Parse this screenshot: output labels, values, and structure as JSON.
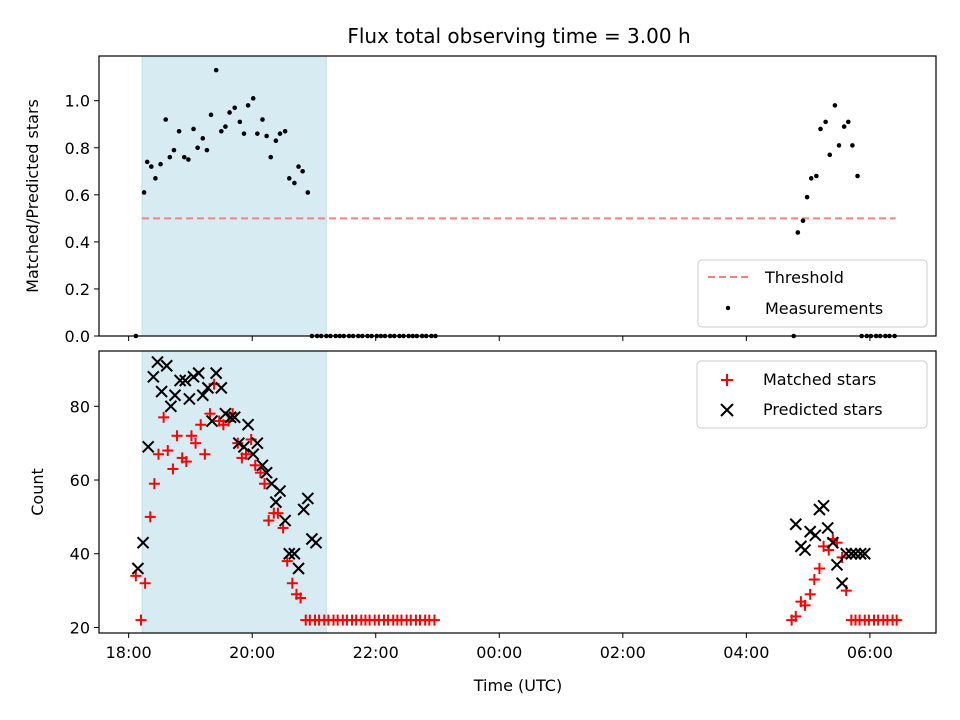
{
  "chart_data": {
    "type": "scatter",
    "title": "Flux total observing time = 3.00 h",
    "xlabel": "Time (UTC)",
    "x_ticks": [
      "18:00",
      "20:00",
      "22:00",
      "00:00",
      "02:00",
      "04:00",
      "06:00"
    ],
    "x_range_hours_from_1800": [
      -0.48,
      13.07
    ],
    "shaded_interval": [
      "18:13",
      "21:12"
    ],
    "panels": [
      {
        "ylabel": "Matched/Predicted stars",
        "ylim": [
          0,
          1.19
        ],
        "yticks": [
          "0.0",
          "0.2",
          "0.4",
          "0.6",
          "0.8",
          "1.0"
        ],
        "legend_position": "lower-right",
        "series": [
          {
            "name": "Threshold",
            "kind": "dashed-line",
            "color": "#ff7f7f",
            "x": [
              "18:13",
              "06:25"
            ],
            "y": [
              0.5,
              0.5
            ]
          },
          {
            "name": "Measurements",
            "kind": "dot",
            "color": "#000000",
            "x": [
              "18:07",
              "18:15",
              "18:18",
              "18:22",
              "18:26",
              "18:31",
              "18:36",
              "18:40",
              "18:44",
              "18:49",
              "18:54",
              "18:58",
              "19:03",
              "19:07",
              "19:12",
              "19:16",
              "19:20",
              "19:25",
              "19:30",
              "19:34",
              "19:38",
              "19:43",
              "19:48",
              "19:52",
              "19:56",
              "20:01",
              "20:05",
              "20:10",
              "20:14",
              "20:18",
              "20:23",
              "20:27",
              "20:32",
              "20:36",
              "20:41",
              "20:45",
              "20:49",
              "20:54",
              "20:58",
              "21:03",
              "21:07",
              "21:12",
              "21:16",
              "21:21",
              "21:25",
              "21:29",
              "21:34",
              "21:38",
              "21:43",
              "21:47",
              "21:52",
              "21:56",
              "22:01",
              "22:05",
              "22:09",
              "22:14",
              "22:18",
              "22:23",
              "22:27",
              "22:32",
              "22:36",
              "22:40",
              "22:45",
              "22:49",
              "22:54",
              "22:58",
              "04:46",
              "04:50",
              "04:55",
              "04:59",
              "05:03",
              "05:08",
              "05:12",
              "05:17",
              "05:21",
              "05:26",
              "05:30",
              "05:35",
              "05:39",
              "05:43",
              "05:48",
              "05:52",
              "05:57",
              "06:01",
              "06:06",
              "06:10",
              "06:15",
              "06:19",
              "06:24"
            ],
            "y": [
              0,
              0.61,
              0.74,
              0.72,
              0.67,
              0.73,
              0.92,
              0.76,
              0.79,
              0.87,
              0.76,
              0.75,
              0.88,
              0.8,
              0.84,
              0.79,
              0.94,
              1.13,
              0.87,
              0.89,
              0.95,
              0.97,
              0.91,
              0.86,
              0.98,
              1.01,
              0.86,
              0.92,
              0.85,
              0.76,
              0.83,
              0.86,
              0.87,
              0.67,
              0.65,
              0.72,
              0.7,
              0.61,
              0,
              0,
              0,
              0,
              0,
              0,
              0,
              0,
              0,
              0,
              0,
              0,
              0,
              0,
              0,
              0,
              0,
              0,
              0,
              0,
              0,
              0,
              0,
              0,
              0,
              0,
              0,
              0,
              0,
              0.44,
              0.49,
              0.59,
              0.67,
              0.68,
              0.88,
              0.91,
              0.77,
              0.98,
              0.81,
              0.89,
              0.91,
              0.81,
              0.68,
              0,
              0,
              0,
              0,
              0,
              0,
              0,
              0
            ]
          }
        ]
      },
      {
        "ylabel": "Count",
        "ylim": [
          18.5,
          95
        ],
        "yticks": [
          "20",
          "40",
          "60",
          "80"
        ],
        "legend_position": "upper-right",
        "series": [
          {
            "name": "Matched stars",
            "kind": "plus",
            "color": "#ff0000",
            "x": [
              "18:07",
              "18:12",
              "18:16",
              "18:21",
              "18:25",
              "18:29",
              "18:34",
              "18:38",
              "18:43",
              "18:47",
              "18:52",
              "18:56",
              "19:01",
              "19:05",
              "19:10",
              "19:14",
              "19:19",
              "19:23",
              "19:28",
              "19:32",
              "19:37",
              "19:41",
              "19:46",
              "19:50",
              "19:54",
              "19:59",
              "20:03",
              "20:08",
              "20:12",
              "20:16",
              "20:21",
              "20:25",
              "20:30",
              "20:34",
              "20:39",
              "20:43",
              "20:47",
              "20:52",
              "20:56",
              "21:01",
              "21:05",
              "21:10",
              "21:14",
              "21:19",
              "21:23",
              "21:28",
              "21:32",
              "21:37",
              "21:41",
              "21:46",
              "21:50",
              "21:54",
              "21:59",
              "22:03",
              "22:08",
              "22:12",
              "22:17",
              "22:21",
              "22:25",
              "22:30",
              "22:34",
              "22:39",
              "22:43",
              "22:48",
              "22:52",
              "22:57",
              "04:44",
              "04:48",
              "04:53",
              "04:57",
              "05:02",
              "05:06",
              "05:11",
              "05:15",
              "05:20",
              "05:24",
              "05:28",
              "05:33",
              "05:37",
              "05:42",
              "05:46",
              "05:50",
              "05:55",
              "05:59",
              "06:04",
              "06:08",
              "06:13",
              "06:17",
              "06:22",
              "06:26"
            ],
            "y": [
              34,
              22,
              32,
              50,
              59,
              67,
              77,
              68,
              63,
              72,
              66,
              65,
              72,
              70,
              75,
              67,
              78,
              86,
              76,
              75,
              76,
              78,
              70,
              66,
              67,
              71,
              64,
              62,
              59,
              49,
              51,
              51,
              47,
              38,
              32,
              29,
              28,
              22,
              22,
              22,
              22,
              22,
              22,
              22,
              22,
              22,
              22,
              22,
              22,
              22,
              22,
              22,
              22,
              22,
              22,
              22,
              22,
              22,
              22,
              22,
              22,
              22,
              22,
              22,
              22,
              22,
              22,
              23,
              27,
              26,
              29,
              33,
              36,
              42,
              41,
              44,
              43,
              39,
              30,
              22,
              22,
              22,
              22,
              22,
              22,
              22,
              22,
              22,
              22,
              22
            ]
          },
          {
            "name": "Predicted stars",
            "kind": "x",
            "color": "#000000",
            "x": [
              "18:09",
              "18:14",
              "18:19",
              "18:24",
              "18:28",
              "18:32",
              "18:37",
              "18:41",
              "18:45",
              "18:50",
              "18:55",
              "18:59",
              "19:03",
              "19:08",
              "19:12",
              "19:17",
              "19:21",
              "19:25",
              "19:30",
              "19:34",
              "19:39",
              "19:43",
              "19:47",
              "19:52",
              "19:56",
              "20:01",
              "20:05",
              "20:10",
              "20:14",
              "20:19",
              "20:23",
              "20:27",
              "20:32",
              "20:36",
              "20:41",
              "20:45",
              "20:50",
              "20:54",
              "20:58",
              "21:02",
              "04:48",
              "04:53",
              "04:57",
              "05:02",
              "05:07",
              "05:11",
              "05:15",
              "05:19",
              "05:24",
              "05:28",
              "05:33",
              "05:37",
              "05:42",
              "05:46",
              "05:51",
              "05:55"
            ],
            "y": [
              36,
              43,
              69,
              88,
              92,
              84,
              91,
              80,
              83,
              87,
              87,
              82,
              88,
              89,
              83,
              85,
              76,
              89,
              85,
              78,
              77,
              77,
              70,
              69,
              75,
              67,
              70,
              64,
              62,
              59,
              54,
              57,
              49,
              40,
              40,
              36,
              52,
              55,
              44,
              43,
              48,
              42,
              41,
              46,
              45,
              52,
              53,
              47,
              43,
              37,
              32,
              40,
              40,
              40,
              40,
              40
            ]
          }
        ]
      }
    ]
  }
}
